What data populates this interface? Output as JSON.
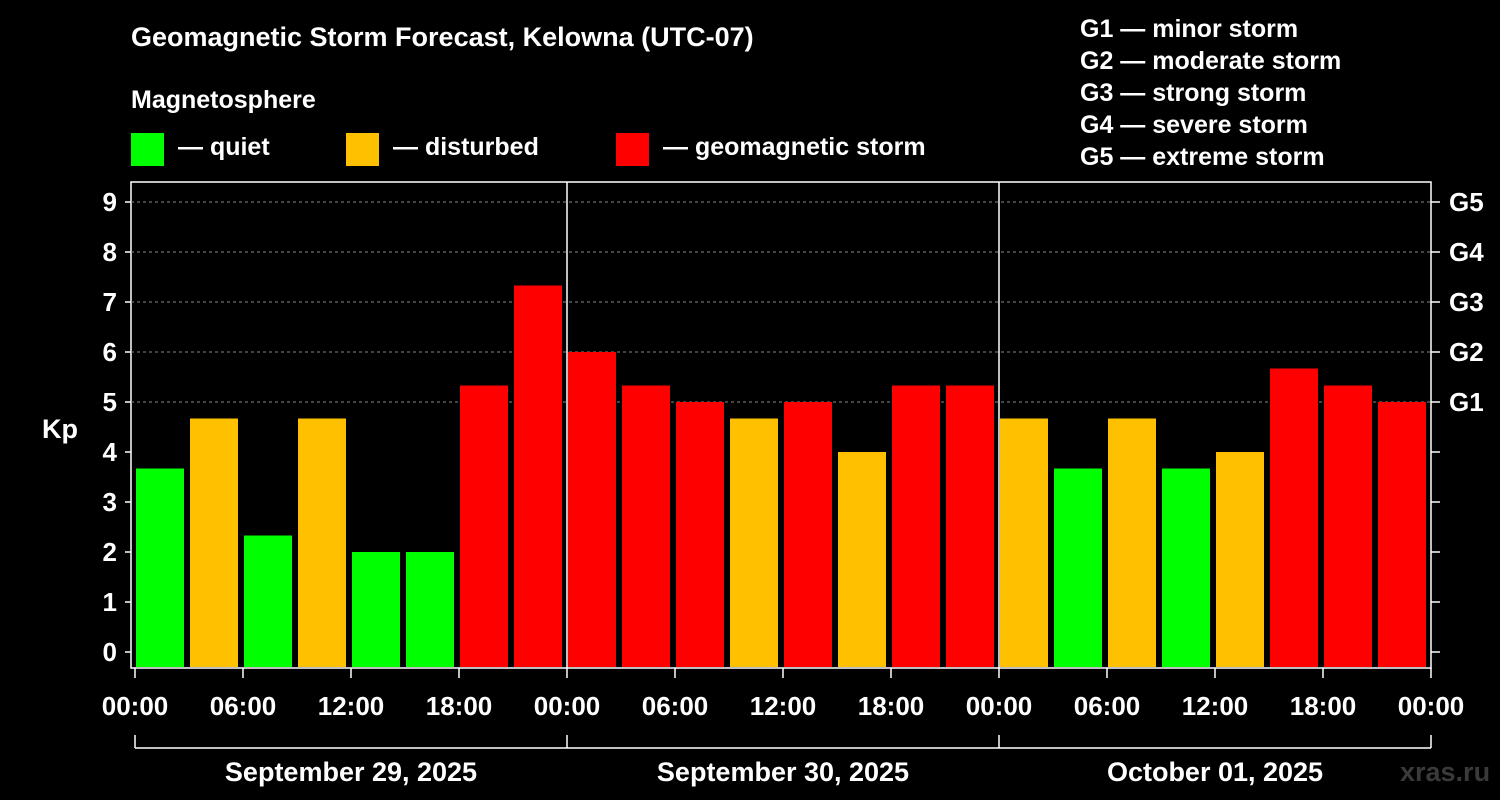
{
  "title": "Geomagnetic Storm Forecast, Kelowna (UTC-07)",
  "subtitle": "Magnetosphere",
  "legend": [
    {
      "label": "— quiet",
      "color": "#00ff00"
    },
    {
      "label": "— disturbed",
      "color": "#ffc000"
    },
    {
      "label": "— geomagnetic storm",
      "color": "#ff0000"
    }
  ],
  "storm_scale": [
    "G1 — minor storm",
    "G2 — moderate storm",
    "G3 — strong storm",
    "G4 — severe storm",
    "G5 — extreme storm"
  ],
  "watermark": "xras.ru",
  "chart_data": {
    "type": "bar",
    "ylabel": "Kp",
    "ylim": [
      0,
      9
    ],
    "yticks": [
      "0",
      "1",
      "2",
      "3",
      "4",
      "5",
      "6",
      "7",
      "8",
      "9"
    ],
    "right_axis_labels": [
      {
        "kp": 5,
        "label": "G1"
      },
      {
        "kp": 6,
        "label": "G2"
      },
      {
        "kp": 7,
        "label": "G3"
      },
      {
        "kp": 8,
        "label": "G4"
      },
      {
        "kp": 9,
        "label": "G5"
      }
    ],
    "xtick_labels": [
      "00:00",
      "06:00",
      "12:00",
      "18:00",
      "00:00",
      "06:00",
      "12:00",
      "18:00",
      "00:00",
      "06:00",
      "12:00",
      "18:00",
      "00:00"
    ],
    "days": [
      "September 29, 2025",
      "September 30, 2025",
      "October 01, 2025"
    ],
    "categories": [
      "00:00",
      "03:00",
      "06:00",
      "09:00",
      "12:00",
      "15:00",
      "18:00",
      "21:00",
      "00:00",
      "03:00",
      "06:00",
      "09:00",
      "12:00",
      "15:00",
      "18:00",
      "21:00",
      "00:00",
      "03:00",
      "06:00",
      "09:00",
      "12:00",
      "15:00",
      "18:00",
      "21:00"
    ],
    "values": [
      3.67,
      4.67,
      2.33,
      4.67,
      2.0,
      2.0,
      5.33,
      7.33,
      6.0,
      5.33,
      5.0,
      4.67,
      5.0,
      4.0,
      5.33,
      5.33,
      4.67,
      3.67,
      4.67,
      3.67,
      4.0,
      5.67,
      5.33,
      5.0
    ],
    "status": [
      "quiet",
      "disturbed",
      "quiet",
      "disturbed",
      "quiet",
      "quiet",
      "storm",
      "storm",
      "storm",
      "storm",
      "storm",
      "disturbed",
      "storm",
      "disturbed",
      "storm",
      "storm",
      "disturbed",
      "quiet",
      "disturbed",
      "quiet",
      "disturbed",
      "storm",
      "storm",
      "storm"
    ],
    "colors": {
      "quiet": "#00ff00",
      "disturbed": "#ffc000",
      "storm": "#ff0000"
    }
  }
}
